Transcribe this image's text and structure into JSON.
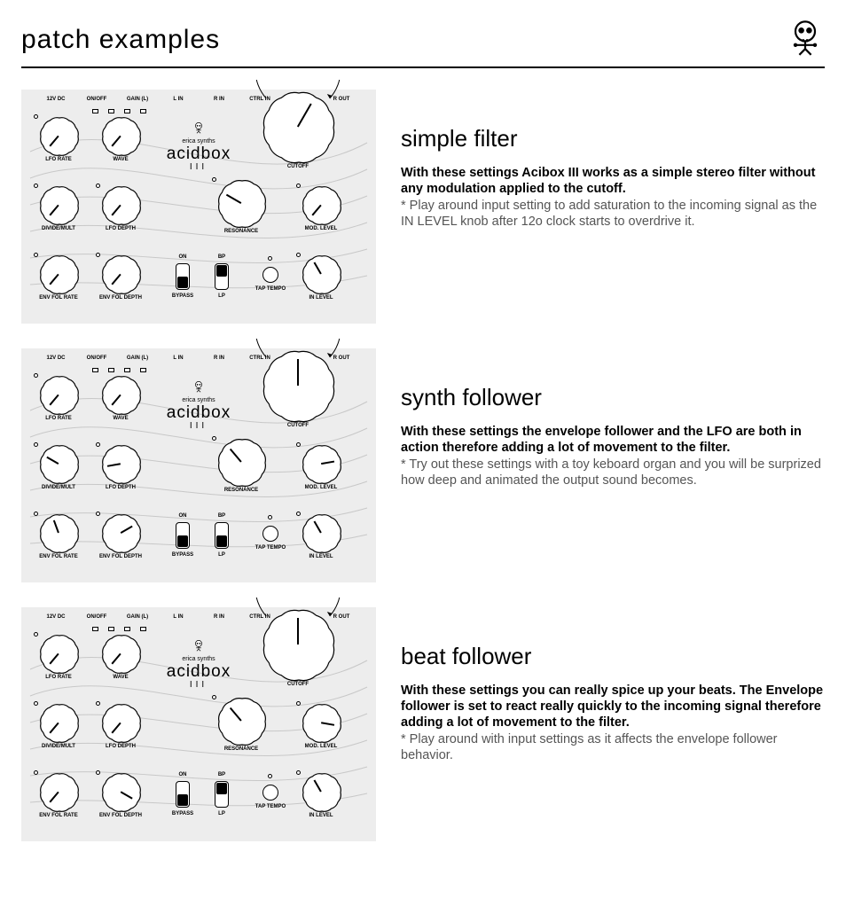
{
  "page_title": "patch examples",
  "panel": {
    "brand_small": "erica synths",
    "brand_big": "acidbox",
    "brand_sub": "III",
    "top_labels": [
      "12V DC",
      "ON/OFF",
      "GAIN (L)",
      "L IN",
      "R IN",
      "CTRL IN",
      "L OUT",
      "R OUT"
    ],
    "knob_labels": {
      "lfo_rate": "LFO RATE",
      "wave": "WAVE",
      "cutoff": "CUTOFF",
      "divide": "DIVIDE/MULT",
      "lfo_depth": "LFO DEPTH",
      "resonance": "RESONANCE",
      "mod": "MOD. LEVEL",
      "env_rate": "ENV FOL RATE",
      "env_depth": "ENV FOL DEPTH",
      "bypass": "BYPASS",
      "lp": "LP",
      "tap": "TAP TEMPO",
      "in": "IN LEVEL"
    },
    "switch_labels": {
      "on": "ON",
      "bp": "BP"
    }
  },
  "examples": [
    {
      "title": "simple filter",
      "bold": "With these settings Acibox III works as a simple stereo filter without any modulation applied to the cutoff.",
      "note": "* Play around input setting to add saturation to the incoming signal as the IN LEVEL knob after 12o clock starts to overdrive it.",
      "knobs": {
        "lfo_rate": -140,
        "wave": -140,
        "cutoff": 30,
        "divide": -140,
        "lfo_depth": -140,
        "resonance": -60,
        "mod": -140,
        "env_rate": -140,
        "env_depth": -140,
        "in": -30
      },
      "bypass_pos": "down",
      "lp_pos": "up"
    },
    {
      "title": "synth follower",
      "bold": "With these settings the envelope follower and the LFO are both in action therefore adding a lot of movement to the filter.",
      "note": "* Try out these settings with a toy keboard organ and you will be surprized how deep and animated the output sound becomes.",
      "knobs": {
        "lfo_rate": -140,
        "wave": -140,
        "cutoff": 0,
        "divide": -60,
        "lfo_depth": -100,
        "resonance": -40,
        "mod": 80,
        "env_rate": -20,
        "env_depth": 60,
        "in": -30
      },
      "bypass_pos": "down",
      "lp_pos": "down"
    },
    {
      "title": "beat follower",
      "bold": "With these settings you can really spice up your beats. The Envelope follower is set to react really quickly to the incoming signal therefore adding a lot of movement to the filter.",
      "note": "* Play around with input settings as it affects the envelope follower behavior.",
      "knobs": {
        "lfo_rate": -140,
        "wave": -140,
        "cutoff": 0,
        "divide": -140,
        "lfo_depth": -140,
        "resonance": -40,
        "mod": 100,
        "env_rate": -140,
        "env_depth": 120,
        "in": -30
      },
      "bypass_pos": "down",
      "lp_pos": "up"
    }
  ],
  "colors": {
    "bg": "#ffffff",
    "panel": "#ededed",
    "text": "#000000",
    "note": "#555555"
  }
}
